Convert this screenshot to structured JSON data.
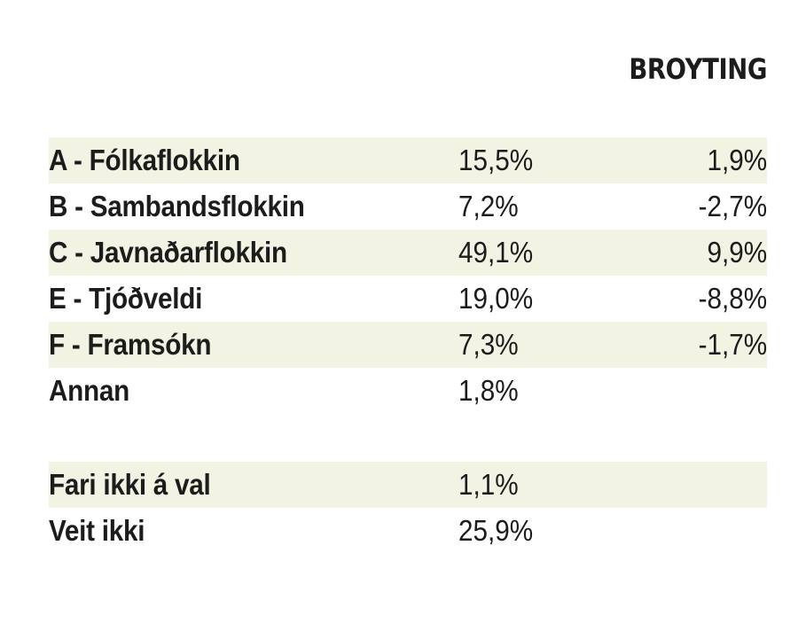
{
  "chart_data": {
    "type": "table",
    "columns": [
      "",
      "",
      "BROYTING"
    ],
    "rows": [
      {
        "party": "A - Fólkaflokkin",
        "share": "15,5%",
        "change": "1,9%"
      },
      {
        "party": "B - Sambandsflokkin",
        "share": "7,2%",
        "change": "-2,7%"
      },
      {
        "party": "C - Javnaðarflokkin",
        "share": "49,1%",
        "change": "9,9%"
      },
      {
        "party": "E - Tjóðveldi",
        "share": "19,0%",
        "change": "-8,8%"
      },
      {
        "party": "F - Framsókn",
        "share": "7,3%",
        "change": "-1,7%"
      },
      {
        "party": "Annan",
        "share": "1,8%",
        "change": ""
      },
      {
        "party": "Fari ikki á val",
        "share": "1,1%",
        "change": ""
      },
      {
        "party": "Veit ikki",
        "share": "25,9%",
        "change": ""
      }
    ],
    "row_colors": {
      "shaded": "#f3f3e4",
      "plain": "#ffffff"
    }
  }
}
